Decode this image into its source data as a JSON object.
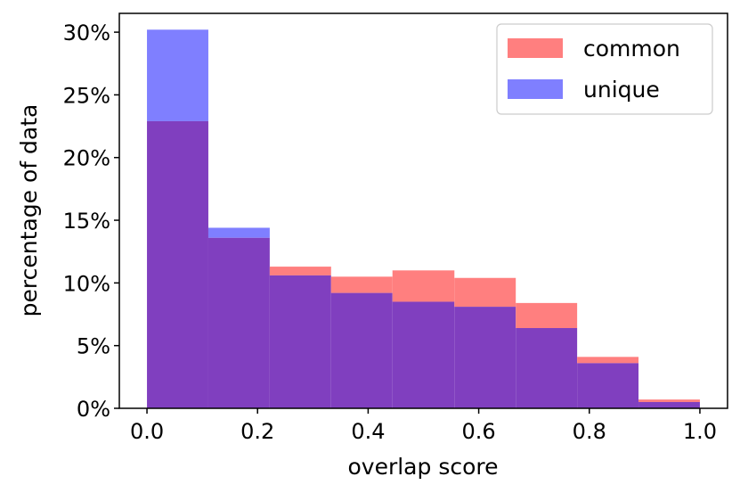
{
  "chart_data": {
    "type": "bar",
    "subtype": "overlapping-histogram",
    "xlabel": "overlap score",
    "ylabel": "percentage of data",
    "xlim": [
      -0.05,
      1.05
    ],
    "ylim": [
      0,
      31.5
    ],
    "bin_edges": [
      0.0,
      0.111,
      0.222,
      0.333,
      0.444,
      0.556,
      0.667,
      0.778,
      0.889,
      1.0
    ],
    "x_ticks": [
      0.0,
      0.2,
      0.4,
      0.6,
      0.8,
      1.0
    ],
    "x_tick_labels": [
      "0.0",
      "0.2",
      "0.4",
      "0.6",
      "0.8",
      "1.0"
    ],
    "y_ticks": [
      0,
      5,
      10,
      15,
      20,
      25,
      30
    ],
    "y_tick_labels": [
      "0%",
      "5%",
      "10%",
      "15%",
      "20%",
      "25%",
      "30%"
    ],
    "legend_position": "top-right",
    "grid": false,
    "series": [
      {
        "name": "common",
        "color": "#ff7f7f",
        "values": [
          22.9,
          13.6,
          11.3,
          10.5,
          11.0,
          10.4,
          8.4,
          4.1,
          0.7
        ]
      },
      {
        "name": "unique",
        "color": "#7f7fff",
        "values": [
          30.2,
          14.4,
          10.6,
          9.2,
          8.5,
          8.1,
          6.4,
          3.6,
          0.5
        ]
      }
    ],
    "overlap_color": "#803fbf"
  }
}
